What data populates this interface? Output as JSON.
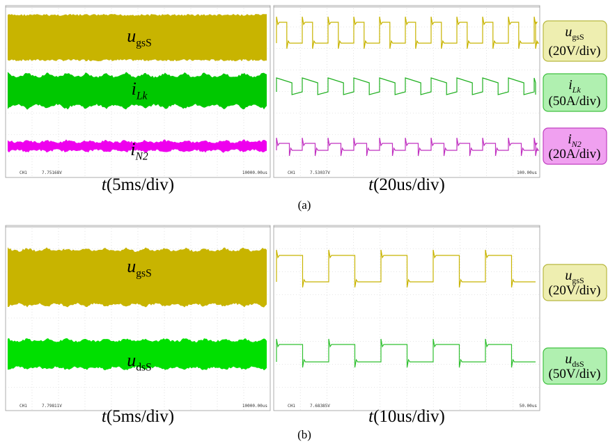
{
  "panels": [
    {
      "label": "(a)",
      "scopes": [
        {
          "time_base": {
            "symbol": "t",
            "text": "(5ms/div)"
          },
          "readouts": [
            "CH1",
            "7.75168V",
            "10000.00us"
          ]
        },
        {
          "time_base": {
            "symbol": "t",
            "text": "(20us/div)"
          },
          "readouts": [
            "CH1",
            "7.53037V",
            "100.00us"
          ]
        }
      ],
      "channels": [
        {
          "symbol": "u",
          "subscript": "gsS",
          "scale": "(20V/div)"
        },
        {
          "symbol": "i",
          "subscript": "Lk",
          "scale": "(50A/div)"
        },
        {
          "symbol": "i",
          "subscript": "N2",
          "scale": "(20A/div)"
        }
      ]
    },
    {
      "label": "(b)",
      "scopes": [
        {
          "time_base": {
            "symbol": "t",
            "text": "(5ms/div)"
          },
          "readouts": [
            "CH1",
            "7.79811V",
            "10000.00us"
          ]
        },
        {
          "time_base": {
            "symbol": "t",
            "text": "(10us/div)"
          },
          "readouts": [
            "CH1",
            "7.68385V",
            "50.00us"
          ]
        }
      ],
      "channels": [
        {
          "symbol": "u",
          "subscript": "gsS",
          "scale": "(20V/div)"
        },
        {
          "symbol": "u",
          "subscript": "dsS",
          "scale": "(50V/div)"
        }
      ]
    }
  ]
}
